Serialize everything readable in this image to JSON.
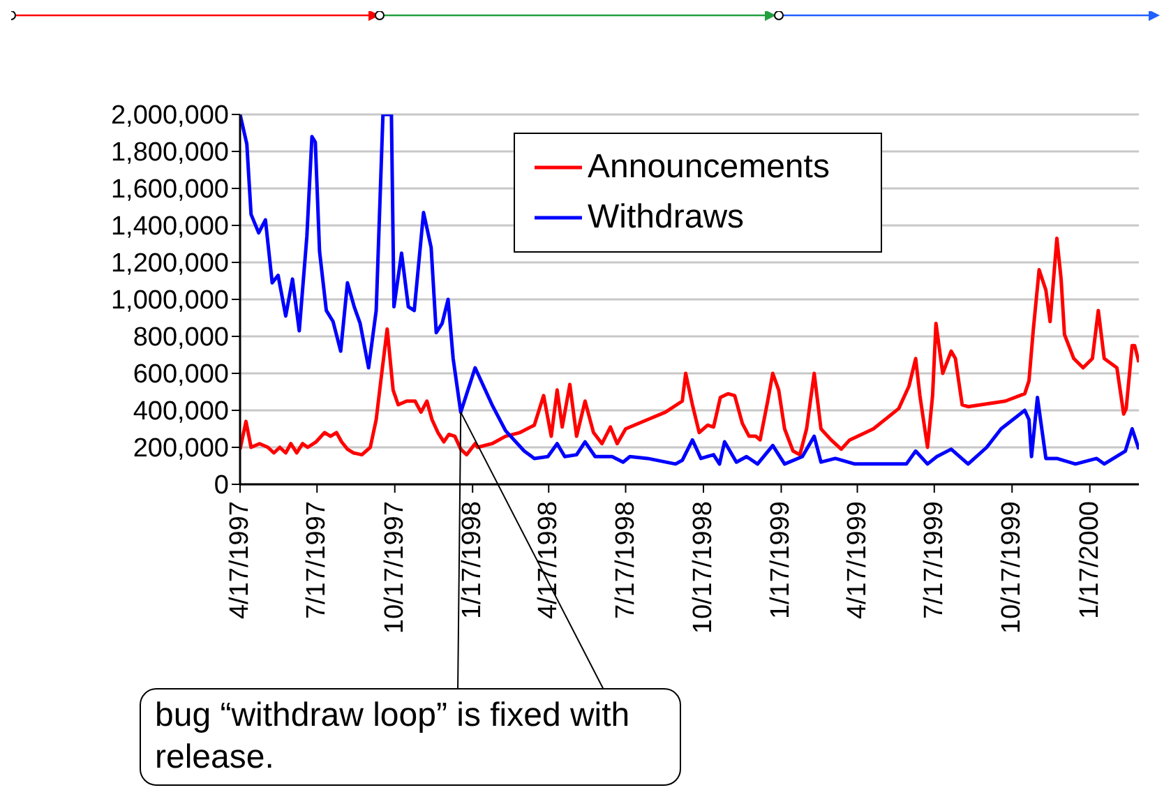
{
  "chart_data": {
    "type": "line",
    "series": [
      {
        "name": "Announcements",
        "color": "#ff0000",
        "x": [
          "1997-04-17",
          "1997-04-24",
          "1997-04-30",
          "1997-05-10",
          "1997-05-20",
          "1997-05-27",
          "1997-06-03",
          "1997-06-10",
          "1997-06-16",
          "1997-06-23",
          "1997-06-30",
          "1997-07-06",
          "1997-07-16",
          "1997-07-26",
          "1997-08-02",
          "1997-08-09",
          "1997-08-15",
          "1997-08-22",
          "1997-08-29",
          "1997-09-08",
          "1997-09-18",
          "1997-09-25",
          "1997-10-01",
          "1997-10-08",
          "1997-10-15",
          "1997-10-21",
          "1997-10-31",
          "1997-11-10",
          "1997-11-17",
          "1997-11-24",
          "1997-11-30",
          "1997-12-07",
          "1997-12-14",
          "1997-12-20",
          "1997-12-27",
          "1998-01-03",
          "1998-01-10",
          "1998-01-20",
          "1998-01-23",
          "1998-02-09",
          "1998-02-25",
          "1998-03-14",
          "1998-03-31",
          "1998-04-11",
          "1998-04-20",
          "1998-04-27",
          "1998-05-03",
          "1998-05-12",
          "1998-05-20",
          "1998-05-30",
          "1998-06-09",
          "1998-06-19",
          "1998-06-29",
          "1998-07-07",
          "1998-07-17",
          "1998-08-12",
          "1998-09-02",
          "1998-09-22",
          "1998-09-26",
          "1998-10-04",
          "1998-10-12",
          "1998-10-22",
          "1998-10-29",
          "1998-11-06",
          "1998-11-15",
          "1998-11-23",
          "1998-12-02",
          "1998-12-10",
          "1998-12-18",
          "1998-12-23",
          "1999-01-01",
          "1999-01-07",
          "1999-01-14",
          "1999-01-21",
          "1999-01-31",
          "1999-02-08",
          "1999-02-16",
          "1999-02-25",
          "1999-03-05",
          "1999-03-17",
          "1999-03-29",
          "1999-04-08",
          "1999-05-06",
          "1999-06-05",
          "1999-06-17",
          "1999-06-25",
          "1999-06-30",
          "1999-07-09",
          "1999-07-15",
          "1999-07-19",
          "1999-07-27",
          "1999-08-06",
          "1999-08-11",
          "1999-08-19",
          "1999-08-26",
          "1999-10-09",
          "1999-11-01",
          "1999-11-06",
          "1999-11-11",
          "1999-11-18",
          "1999-11-26",
          "1999-12-01",
          "1999-12-09",
          "1999-12-14",
          "1999-12-18",
          "1999-12-29",
          "2000-01-09",
          "2000-01-20",
          "2000-01-27",
          "2000-02-03",
          "2000-02-18",
          "2000-02-26",
          "2000-02-29",
          "2000-03-07",
          "2000-03-10",
          "2000-03-15"
        ],
        "values": [
          190000,
          340000,
          200000,
          220000,
          200000,
          170000,
          200000,
          170000,
          220000,
          170000,
          220000,
          200000,
          230000,
          280000,
          260000,
          280000,
          230000,
          190000,
          170000,
          160000,
          200000,
          350000,
          580000,
          840000,
          510000,
          430000,
          450000,
          450000,
          390000,
          450000,
          350000,
          280000,
          230000,
          270000,
          260000,
          190000,
          160000,
          220000,
          200000,
          220000,
          260000,
          280000,
          320000,
          480000,
          260000,
          510000,
          310000,
          540000,
          260000,
          450000,
          280000,
          220000,
          310000,
          220000,
          300000,
          350000,
          390000,
          450000,
          600000,
          430000,
          280000,
          320000,
          310000,
          470000,
          490000,
          480000,
          330000,
          260000,
          260000,
          240000,
          450000,
          600000,
          510000,
          300000,
          180000,
          160000,
          300000,
          600000,
          300000,
          240000,
          190000,
          240000,
          300000,
          410000,
          530000,
          680000,
          480000,
          200000,
          480000,
          870000,
          600000,
          720000,
          680000,
          430000,
          420000,
          450000,
          490000,
          560000,
          830000,
          1160000,
          1050000,
          880000,
          1330000,
          1110000,
          810000,
          680000,
          630000,
          680000,
          940000,
          680000,
          630000,
          380000,
          410000,
          750000,
          750000,
          660000
        ]
      },
      {
        "name": "Withdraws",
        "color": "#0000ff",
        "x": [
          "1997-04-17",
          "1997-04-25",
          "1997-04-30",
          "1997-05-09",
          "1997-05-17",
          "1997-05-25",
          "1997-06-01",
          "1997-06-10",
          "1997-06-18",
          "1997-06-26",
          "1997-07-05",
          "1997-07-11",
          "1997-07-15",
          "1997-07-20",
          "1997-07-28",
          "1997-08-05",
          "1997-08-14",
          "1997-08-22",
          "1997-08-30",
          "1997-09-06",
          "1997-09-16",
          "1997-09-25",
          "1997-10-03",
          "1997-10-13",
          "1997-10-16",
          "1997-10-25",
          "1997-11-02",
          "1997-11-09",
          "1997-11-20",
          "1997-11-29",
          "1997-12-05",
          "1997-12-12",
          "1997-12-19",
          "1997-12-25",
          "1998-01-03",
          "1998-01-20",
          "1998-02-09",
          "1998-02-25",
          "1998-03-19",
          "1998-03-31",
          "1998-04-16",
          "1998-04-27",
          "1998-05-06",
          "1998-05-20",
          "1998-05-30",
          "1998-06-11",
          "1998-07-01",
          "1998-07-14",
          "1998-07-22",
          "1998-08-12",
          "1998-09-14",
          "1998-09-22",
          "1998-10-04",
          "1998-10-14",
          "1998-10-29",
          "1998-11-05",
          "1998-11-11",
          "1998-11-25",
          "1998-12-07",
          "1998-12-20",
          "1999-01-07",
          "1999-01-21",
          "1999-02-11",
          "1999-02-25",
          "1999-03-05",
          "1999-03-22",
          "1999-04-14",
          "1999-06-14",
          "1999-06-25",
          "1999-07-09",
          "1999-07-20",
          "1999-08-06",
          "1999-08-26",
          "1999-09-17",
          "1999-10-04",
          "1999-11-01",
          "1999-11-06",
          "1999-11-09",
          "1999-11-16",
          "1999-11-26",
          "1999-12-09",
          "1999-12-31",
          "2000-01-25",
          "2000-02-03",
          "2000-02-28",
          "2000-03-07",
          "2000-03-15"
        ],
        "values": [
          2000000,
          1840000,
          1460000,
          1360000,
          1430000,
          1090000,
          1130000,
          910000,
          1110000,
          830000,
          1340000,
          1880000,
          1850000,
          1260000,
          940000,
          880000,
          720000,
          1090000,
          960000,
          870000,
          630000,
          940000,
          2000000,
          2000000,
          960000,
          1250000,
          960000,
          940000,
          1470000,
          1280000,
          820000,
          870000,
          1000000,
          680000,
          390000,
          630000,
          430000,
          290000,
          180000,
          140000,
          150000,
          220000,
          150000,
          160000,
          230000,
          150000,
          150000,
          120000,
          150000,
          140000,
          110000,
          130000,
          240000,
          140000,
          160000,
          110000,
          230000,
          120000,
          150000,
          110000,
          210000,
          110000,
          150000,
          260000,
          120000,
          140000,
          110000,
          110000,
          180000,
          110000,
          150000,
          190000,
          110000,
          200000,
          300000,
          400000,
          350000,
          150000,
          470000,
          140000,
          140000,
          110000,
          140000,
          110000,
          180000,
          300000,
          190000
        ]
      }
    ],
    "xlim": [
      "1997-04-17",
      "2000-03-15"
    ],
    "xticks": [
      {
        "value": "1997-04-17",
        "label": "4/17/1997"
      },
      {
        "value": "1997-07-17",
        "label": "7/17/1997"
      },
      {
        "value": "1997-10-17",
        "label": "10/17/1997"
      },
      {
        "value": "1998-01-17",
        "label": "1/17/1998"
      },
      {
        "value": "1998-04-17",
        "label": "4/17/1998"
      },
      {
        "value": "1998-07-17",
        "label": "7/17/1998"
      },
      {
        "value": "1998-10-17",
        "label": "10/17/1998"
      },
      {
        "value": "1999-01-17",
        "label": "1/17/1999"
      },
      {
        "value": "1999-04-17",
        "label": "4/17/1999"
      },
      {
        "value": "1999-07-17",
        "label": "7/17/1999"
      },
      {
        "value": "1999-10-17",
        "label": "10/17/1999"
      },
      {
        "value": "2000-01-17",
        "label": "1/17/2000"
      }
    ],
    "ylim": [
      0,
      2000000
    ],
    "yticks": [
      {
        "value": 0,
        "label": "0"
      },
      {
        "value": 200000,
        "label": "200,000"
      },
      {
        "value": 400000,
        "label": "400,000"
      },
      {
        "value": 600000,
        "label": "600,000"
      },
      {
        "value": 800000,
        "label": "800,000"
      },
      {
        "value": 1000000,
        "label": "1,000,000"
      },
      {
        "value": 1200000,
        "label": "1,200,000"
      },
      {
        "value": 1400000,
        "label": "1,400,000"
      },
      {
        "value": 1600000,
        "label": "1,600,000"
      },
      {
        "value": 1800000,
        "label": "1,800,000"
      },
      {
        "value": 2000000,
        "label": "2,000,000"
      }
    ],
    "grid": "y",
    "legend": "top",
    "marker": "none",
    "line_style": "solid",
    "annotations": [
      {
        "text": "bug “withdraw loop” is fixed with release.",
        "x": "1998-01-03",
        "y": 390000
      }
    ]
  }
}
